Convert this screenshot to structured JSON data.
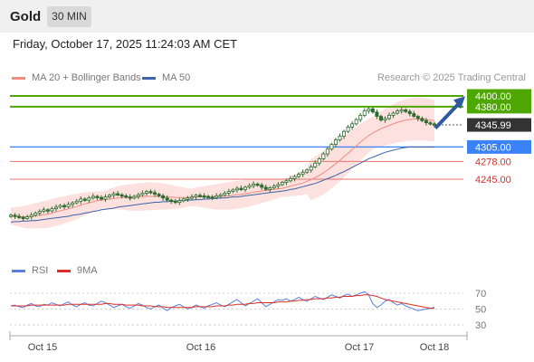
{
  "header": {
    "title": "Gold",
    "timeframe": "30 MIN"
  },
  "datetime": "Friday, October 17, 2025 11:24:03 AM CET",
  "legend": {
    "bb_label": "MA 20 + Bollinger Bands",
    "ma50_label": "MA 50",
    "credit": "Research © 2025 Trading Central"
  },
  "rsi_legend": {
    "rsi_label": "RSI",
    "ma_label": "9MA"
  },
  "colors": {
    "bb": "#f28b82",
    "bb_fill": "#fbd9d6",
    "ma50": "#3d63a8",
    "green": "#4ea600",
    "blue": "#3b82f6",
    "red": "#d93025",
    "dark": "#333333",
    "candle": "#2f6b2f"
  },
  "chart_data": [
    {
      "type": "candlestick",
      "title": "",
      "ylim": [
        4150,
        4425
      ],
      "x_labels": [
        "Oct 15",
        "Oct 16",
        "Oct 17",
        "Oct 18"
      ],
      "levels": [
        {
          "value": 4400.0,
          "label": "4400.00",
          "style": "green"
        },
        {
          "value": 4380.0,
          "label": "4380.00",
          "style": "green"
        },
        {
          "value": 4345.99,
          "label": "4345.99",
          "style": "dark"
        },
        {
          "value": 4305.0,
          "label": "4305.00",
          "style": "blue"
        },
        {
          "value": 4278.0,
          "label": "4278.00",
          "style": "red"
        },
        {
          "value": 4245.0,
          "label": "4245.00",
          "style": "red"
        }
      ],
      "close_series": [
        4178,
        4176,
        4174,
        4172,
        4175,
        4178,
        4182,
        4185,
        4188,
        4186,
        4190,
        4193,
        4196,
        4194,
        4198,
        4201,
        4204,
        4208,
        4206,
        4210,
        4213,
        4211,
        4208,
        4212,
        4215,
        4218,
        4216,
        4214,
        4212,
        4210,
        4213,
        4216,
        4219,
        4222,
        4220,
        4217,
        4214,
        4210,
        4206,
        4204,
        4202,
        4205,
        4208,
        4210,
        4212,
        4215,
        4214,
        4213,
        4212,
        4211,
        4214,
        4216,
        4219,
        4222,
        4225,
        4228,
        4226,
        4230,
        4233,
        4236,
        4234,
        4230,
        4226,
        4229,
        4232,
        4235,
        4239,
        4242,
        4246,
        4250,
        4254,
        4258,
        4262,
        4268,
        4275,
        4283,
        4292,
        4301,
        4310,
        4318,
        4325,
        4334,
        4342,
        4348,
        4356,
        4364,
        4372,
        4376,
        4370,
        4362,
        4355,
        4358,
        4364,
        4368,
        4372,
        4374,
        4371,
        4367,
        4362,
        4358,
        4354,
        4350,
        4348,
        4346
      ],
      "ma20_series": [
        4176,
        4176,
        4175,
        4175,
        4175,
        4176,
        4177,
        4178,
        4179,
        4180,
        4182,
        4184,
        4186,
        4188,
        4190,
        4192,
        4194,
        4197,
        4199,
        4201,
        4203,
        4205,
        4206,
        4207,
        4208,
        4209,
        4210,
        4211,
        4211,
        4211,
        4211,
        4212,
        4212,
        4213,
        4213,
        4213,
        4213,
        4213,
        4212,
        4212,
        4211,
        4211,
        4211,
        4211,
        4211,
        4212,
        4212,
        4212,
        4212,
        4212,
        4212,
        4213,
        4213,
        4214,
        4215,
        4216,
        4217,
        4218,
        4219,
        4221,
        4222,
        4223,
        4224,
        4225,
        4226,
        4227,
        4228,
        4230,
        4232,
        4234,
        4236,
        4238,
        4241,
        4244,
        4248,
        4252,
        4257,
        4262,
        4268,
        4274,
        4280,
        4287,
        4293,
        4300,
        4307,
        4314,
        4320,
        4326,
        4331,
        4335,
        4339,
        4342,
        4345,
        4348,
        4351,
        4353,
        4355,
        4356,
        4357,
        4357,
        4357,
        4356,
        4355,
        4354
      ],
      "ma50_series": [
        4165,
        4166,
        4166,
        4167,
        4167,
        4168,
        4168,
        4169,
        4170,
        4171,
        4172,
        4173,
        4174,
        4175,
        4176,
        4178,
        4179,
        4180,
        4182,
        4183,
        4185,
        4186,
        4188,
        4189,
        4190,
        4191,
        4193,
        4194,
        4195,
        4196,
        4197,
        4198,
        4199,
        4200,
        4201,
        4202,
        4202,
        4203,
        4203,
        4204,
        4204,
        4205,
        4205,
        4206,
        4206,
        4207,
        4207,
        4208,
        4208,
        4209,
        4209,
        4210,
        4210,
        4211,
        4212,
        4212,
        4213,
        4214,
        4215,
        4216,
        4217,
        4218,
        4219,
        4220,
        4221,
        4222,
        4223,
        4224,
        4226,
        4227,
        4229,
        4231,
        4233,
        4235,
        4237,
        4240,
        4243,
        4246,
        4249,
        4252,
        4256,
        4259,
        4263,
        4267,
        4271,
        4275,
        4279,
        4283,
        4286,
        4289,
        4292,
        4295,
        4297,
        4299,
        4301,
        4303,
        4304,
        4305,
        4305,
        4305,
        4305,
        4305,
        4305,
        4305
      ]
    },
    {
      "type": "line",
      "title": "",
      "ylim": [
        10,
        90
      ],
      "y_ticks": [
        70,
        50,
        30
      ],
      "rsi_series": [
        54,
        55,
        53,
        52,
        55,
        57,
        54,
        53,
        56,
        55,
        58,
        56,
        54,
        57,
        59,
        55,
        53,
        56,
        58,
        55,
        54,
        57,
        60,
        58,
        55,
        52,
        54,
        56,
        53,
        51,
        54,
        57,
        55,
        52,
        50,
        53,
        55,
        51,
        48,
        52,
        54,
        56,
        53,
        50,
        52,
        55,
        53,
        51,
        54,
        56,
        58,
        55,
        53,
        56,
        59,
        62,
        58,
        54,
        57,
        60,
        63,
        58,
        53,
        56,
        59,
        62,
        61,
        63,
        60,
        62,
        65,
        62,
        60,
        63,
        66,
        64,
        62,
        65,
        68,
        66,
        64,
        67,
        69,
        66,
        68,
        70,
        72,
        68,
        57,
        52,
        55,
        60,
        62,
        58,
        55,
        57,
        54,
        52,
        50,
        48,
        49,
        50,
        51,
        52
      ],
      "ma9_series": [
        54,
        54,
        54,
        54,
        54,
        55,
        55,
        55,
        55,
        55,
        55,
        55,
        55,
        55,
        56,
        56,
        56,
        56,
        56,
        56,
        56,
        56,
        56,
        57,
        57,
        56,
        56,
        56,
        55,
        55,
        55,
        55,
        54,
        54,
        54,
        53,
        53,
        53,
        52,
        52,
        52,
        52,
        52,
        52,
        52,
        53,
        53,
        53,
        53,
        53,
        54,
        54,
        54,
        55,
        55,
        56,
        56,
        56,
        57,
        57,
        58,
        58,
        58,
        58,
        58,
        59,
        59,
        59,
        60,
        60,
        61,
        61,
        62,
        62,
        63,
        63,
        63,
        64,
        64,
        65,
        65,
        66,
        66,
        66,
        67,
        67,
        68,
        68,
        67,
        66,
        64,
        62,
        61,
        60,
        59,
        58,
        57,
        56,
        55,
        54,
        53,
        52,
        51,
        51
      ]
    }
  ]
}
